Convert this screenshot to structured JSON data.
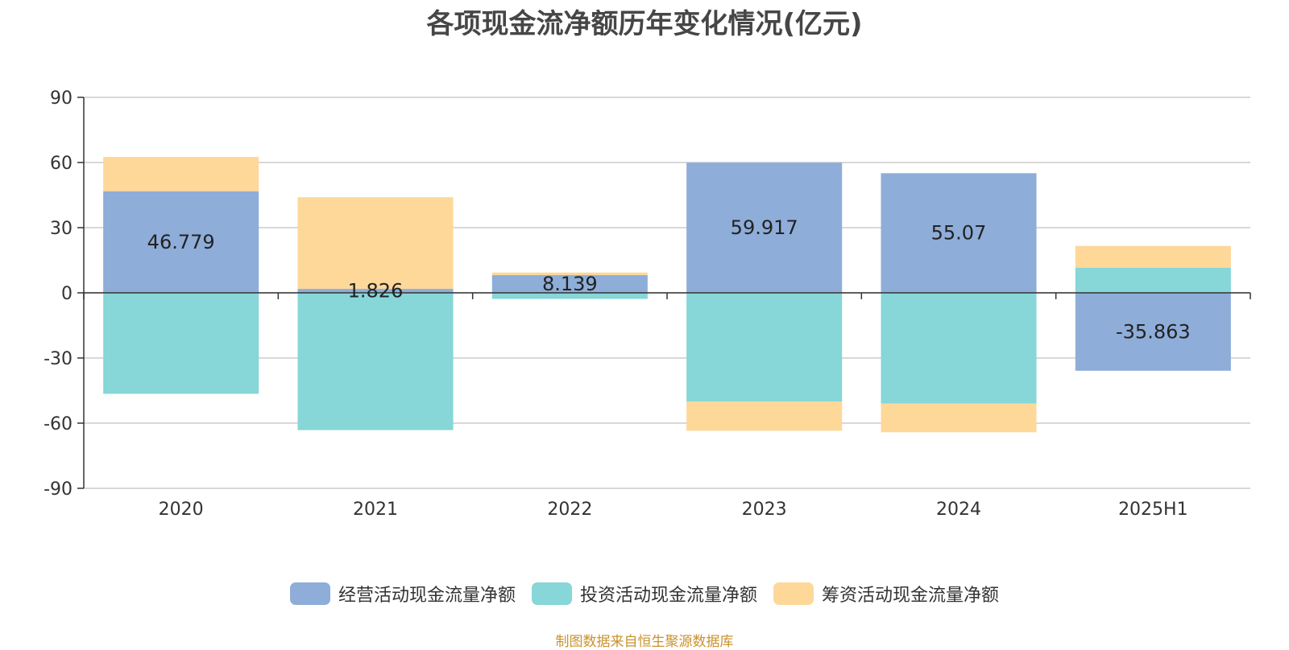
{
  "chart_data": {
    "type": "bar",
    "stacked": true,
    "title": "各项现金流净额历年变化情况(亿元)",
    "categories": [
      "2020",
      "2021",
      "2022",
      "2023",
      "2024",
      "2025H1"
    ],
    "ylim": [
      -90,
      90
    ],
    "yticks": [
      90,
      60,
      30,
      0,
      -30,
      -60,
      -90
    ],
    "grid": true,
    "legend_position": "bottom",
    "series": [
      {
        "name": "经营活动现金流量净额",
        "color": "#8eadd9",
        "values": [
          46.779,
          1.826,
          8.139,
          59.917,
          55.07,
          -35.863
        ],
        "labels": [
          "46.779",
          "1.826",
          "8.139",
          "59.917",
          "55.07",
          "-35.863"
        ]
      },
      {
        "name": "投资活动现金流量净额",
        "color": "#87d6d8",
        "values": [
          -46.5,
          -63.2,
          -2.8,
          -50.0,
          -51.0,
          11.6
        ]
      },
      {
        "name": "筹资活动现金流量净额",
        "color": "#fdd899",
        "values": [
          15.8,
          42.2,
          1.2,
          -13.5,
          -13.2,
          10.0
        ]
      }
    ]
  },
  "source": "制图数据来自恒生聚源数据库"
}
